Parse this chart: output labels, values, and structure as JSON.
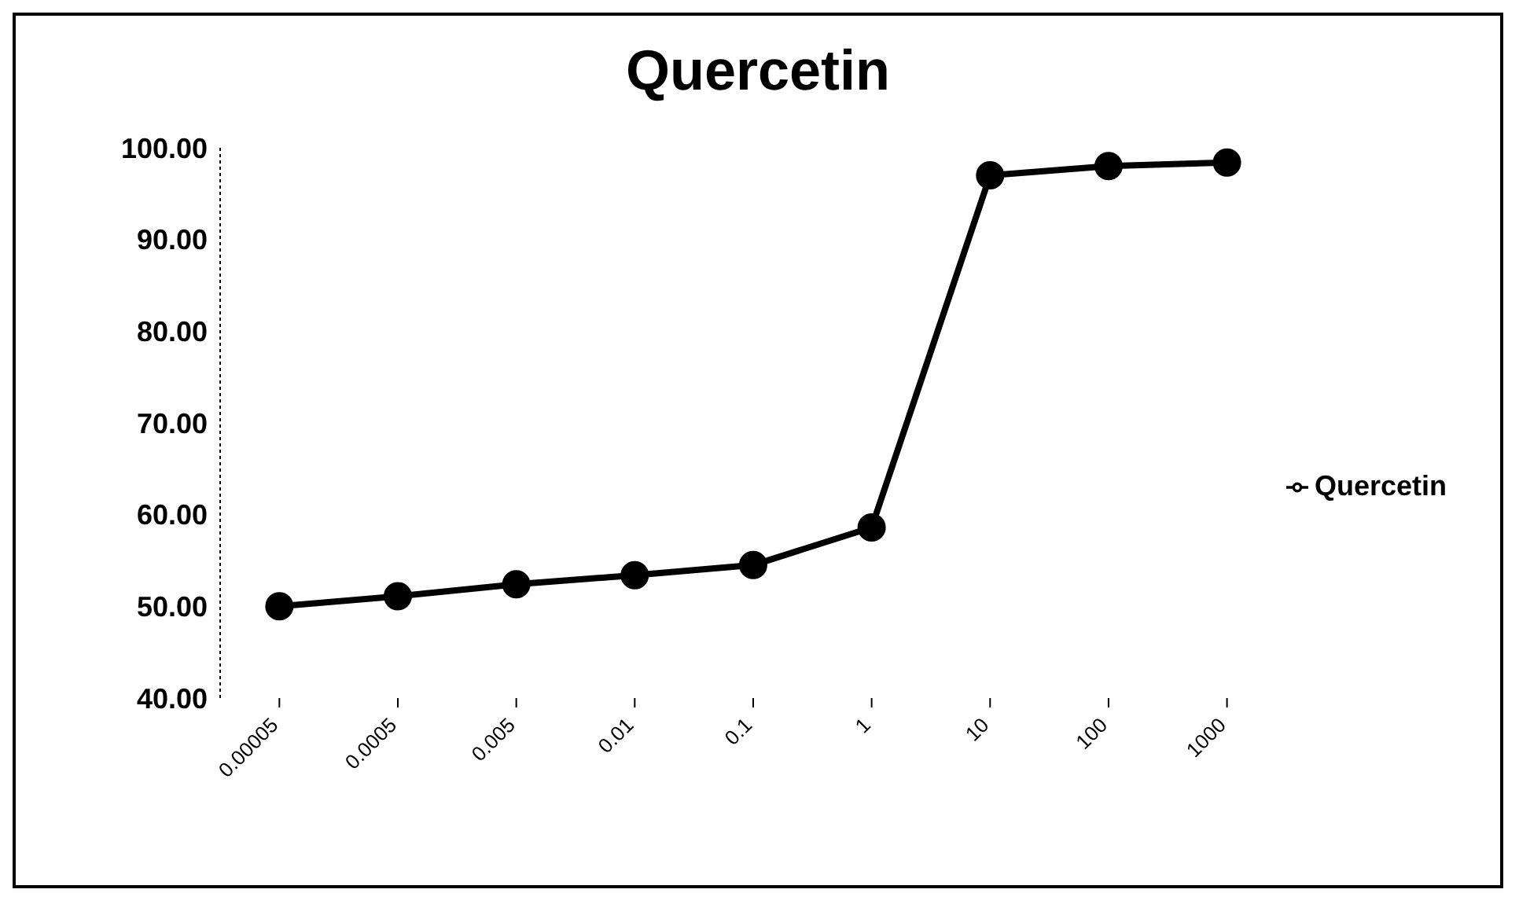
{
  "chart_data": {
    "type": "line",
    "title": "Quercetin",
    "categories": [
      "0.00005",
      "0.0005",
      "0.005",
      "0.01",
      "0.1",
      "1",
      "10",
      "100",
      "1000"
    ],
    "series": [
      {
        "name": "Quercetin",
        "color": "#000000",
        "values": [
          50.0,
          51.1,
          52.4,
          53.4,
          54.5,
          58.6,
          97.0,
          98.0,
          98.4
        ]
      }
    ],
    "ylim": [
      40,
      100
    ],
    "yticks": [
      {
        "value": 40,
        "label": "40.00"
      },
      {
        "value": 50,
        "label": "50.00"
      },
      {
        "value": 60,
        "label": "60.00"
      },
      {
        "value": 70,
        "label": "70.00"
      },
      {
        "value": 80,
        "label": "80.00"
      },
      {
        "value": 90,
        "label": "90.00"
      },
      {
        "value": 100,
        "label": "100.00"
      }
    ],
    "grid": false,
    "legend": "right",
    "marker": "circle",
    "line_style": "solid"
  }
}
